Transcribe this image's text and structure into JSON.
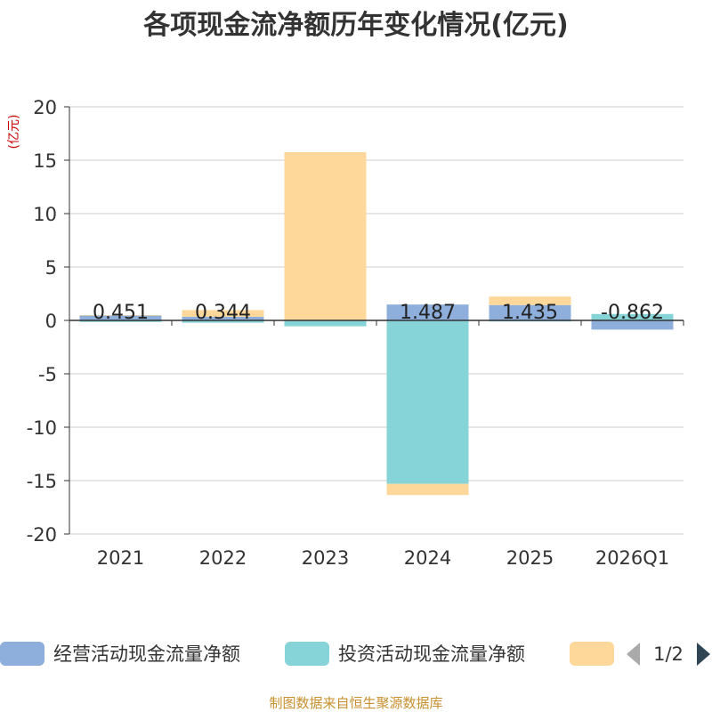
{
  "chart_data": {
    "type": "bar",
    "stacked": true,
    "title": "各项现金流净额历年变化情况(亿元)",
    "unit_label": "(亿元)",
    "categories": [
      "2021",
      "2022",
      "2023",
      "2024",
      "2025",
      "2026Q1"
    ],
    "ylim": [
      -20,
      20
    ],
    "yticks": [
      20,
      15,
      10,
      5,
      0,
      -5,
      -10,
      -15,
      -20
    ],
    "grid": true,
    "series": [
      {
        "name": "经营活动现金流量净额",
        "color": "#8eafdc",
        "values": [
          0.451,
          0.344,
          null,
          1.487,
          1.435,
          -0.862
        ]
      },
      {
        "name": "投资活动现金流量净额",
        "color": "#86d4d8",
        "values": [
          -0.15,
          -0.22,
          -0.55,
          -15.3,
          -0.1,
          0.6
        ]
      },
      {
        "name": "",
        "color": "#fdd89a",
        "values": [
          0.05,
          0.62,
          15.75,
          -1.05,
          0.8,
          0.0
        ]
      }
    ],
    "data_labels": [
      "0.451",
      "0.344",
      "",
      "1.487",
      "1.435",
      "-0.862"
    ],
    "legend": {
      "position": "bottom",
      "page": "1/2"
    },
    "source": "制图数据来自恒生聚源数据库"
  }
}
